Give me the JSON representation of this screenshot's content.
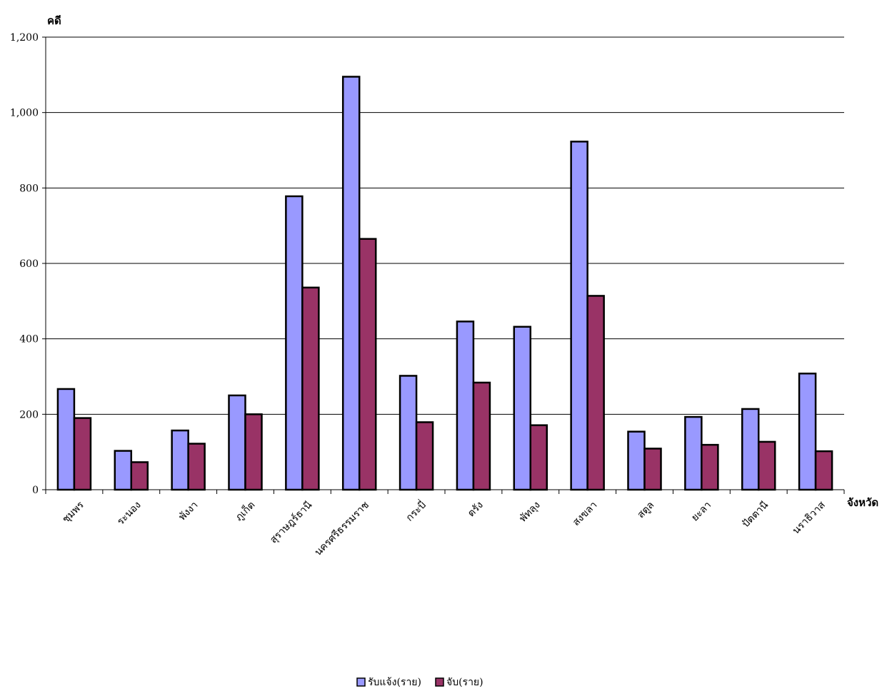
{
  "chart_data": {
    "type": "bar",
    "ylabel": "คดี",
    "xlabel": "จังหวัด",
    "ylim": [
      0,
      1200
    ],
    "yticks": [
      0,
      200,
      400,
      600,
      800,
      1000,
      1200
    ],
    "ytick_labels": [
      "0",
      "200",
      "400",
      "600",
      "800",
      "1,000",
      "1,200"
    ],
    "categories": [
      "ชุมพร",
      "ระนอง",
      "พังงา",
      "ภูเก็ต",
      "สุราษฎร์ธานี",
      "นครศรีธรรมราช",
      "กระบี่",
      "ตรัง",
      "พัทลุง",
      "สงขลา",
      "สตูล",
      "ยะลา",
      "ปัตตานี",
      "นราธิวาส"
    ],
    "series": [
      {
        "name": "รับแจ้ง(ราย)",
        "color": "#9999ff",
        "values": [
          267,
          103,
          157,
          250,
          778,
          1095,
          302,
          446,
          432,
          923,
          154,
          193,
          214,
          308
        ]
      },
      {
        "name": "จับ(ราย)",
        "color": "#993366",
        "values": [
          190,
          73,
          122,
          200,
          536,
          665,
          179,
          284,
          171,
          514,
          109,
          119,
          127,
          102
        ]
      }
    ],
    "grid": true,
    "legend_position": "bottom-center"
  }
}
